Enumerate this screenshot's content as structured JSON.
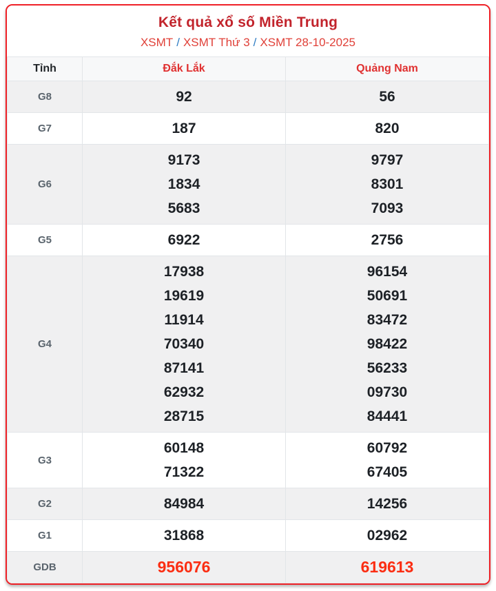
{
  "header": {
    "title": "Kết quả xổ số Miền Trung",
    "separator": "/",
    "breadcrumb": [
      "XSMT",
      "XSMT Thứ 3",
      "XSMT 28-10-2025"
    ]
  },
  "table": {
    "corner_label": "Tỉnh",
    "columns": [
      "Đắk Lắk",
      "Quảng Nam"
    ],
    "rows": [
      {
        "prize": "G8",
        "highlight": false,
        "values": [
          [
            "92"
          ],
          [
            "56"
          ]
        ]
      },
      {
        "prize": "G7",
        "highlight": false,
        "values": [
          [
            "187"
          ],
          [
            "820"
          ]
        ]
      },
      {
        "prize": "G6",
        "highlight": false,
        "values": [
          [
            "9173",
            "1834",
            "5683"
          ],
          [
            "9797",
            "8301",
            "7093"
          ]
        ]
      },
      {
        "prize": "G5",
        "highlight": false,
        "values": [
          [
            "6922"
          ],
          [
            "2756"
          ]
        ]
      },
      {
        "prize": "G4",
        "highlight": false,
        "values": [
          [
            "17938",
            "19619",
            "11914",
            "70340",
            "87141",
            "62932",
            "28715"
          ],
          [
            "96154",
            "50691",
            "83472",
            "98422",
            "56233",
            "09730",
            "84441"
          ]
        ]
      },
      {
        "prize": "G3",
        "highlight": false,
        "values": [
          [
            "60148",
            "71322"
          ],
          [
            "60792",
            "67405"
          ]
        ]
      },
      {
        "prize": "G2",
        "highlight": false,
        "values": [
          [
            "84984"
          ],
          [
            "14256"
          ]
        ]
      },
      {
        "prize": "G1",
        "highlight": false,
        "values": [
          [
            "31868"
          ],
          [
            "02962"
          ]
        ]
      },
      {
        "prize": "GDB",
        "highlight": true,
        "values": [
          [
            "956076"
          ],
          [
            "619613"
          ]
        ]
      }
    ]
  },
  "colors": {
    "title": "#c2242c",
    "link_red": "#e04038",
    "separator_blue": "#2e7cc3",
    "border_red": "#ef2026",
    "number": "#1d2126",
    "prize_label": "#5a646d",
    "highlight_number": "#fb2d12",
    "stripe_bg": "#f0f0f1",
    "header_bg": "#f7f8f9"
  }
}
